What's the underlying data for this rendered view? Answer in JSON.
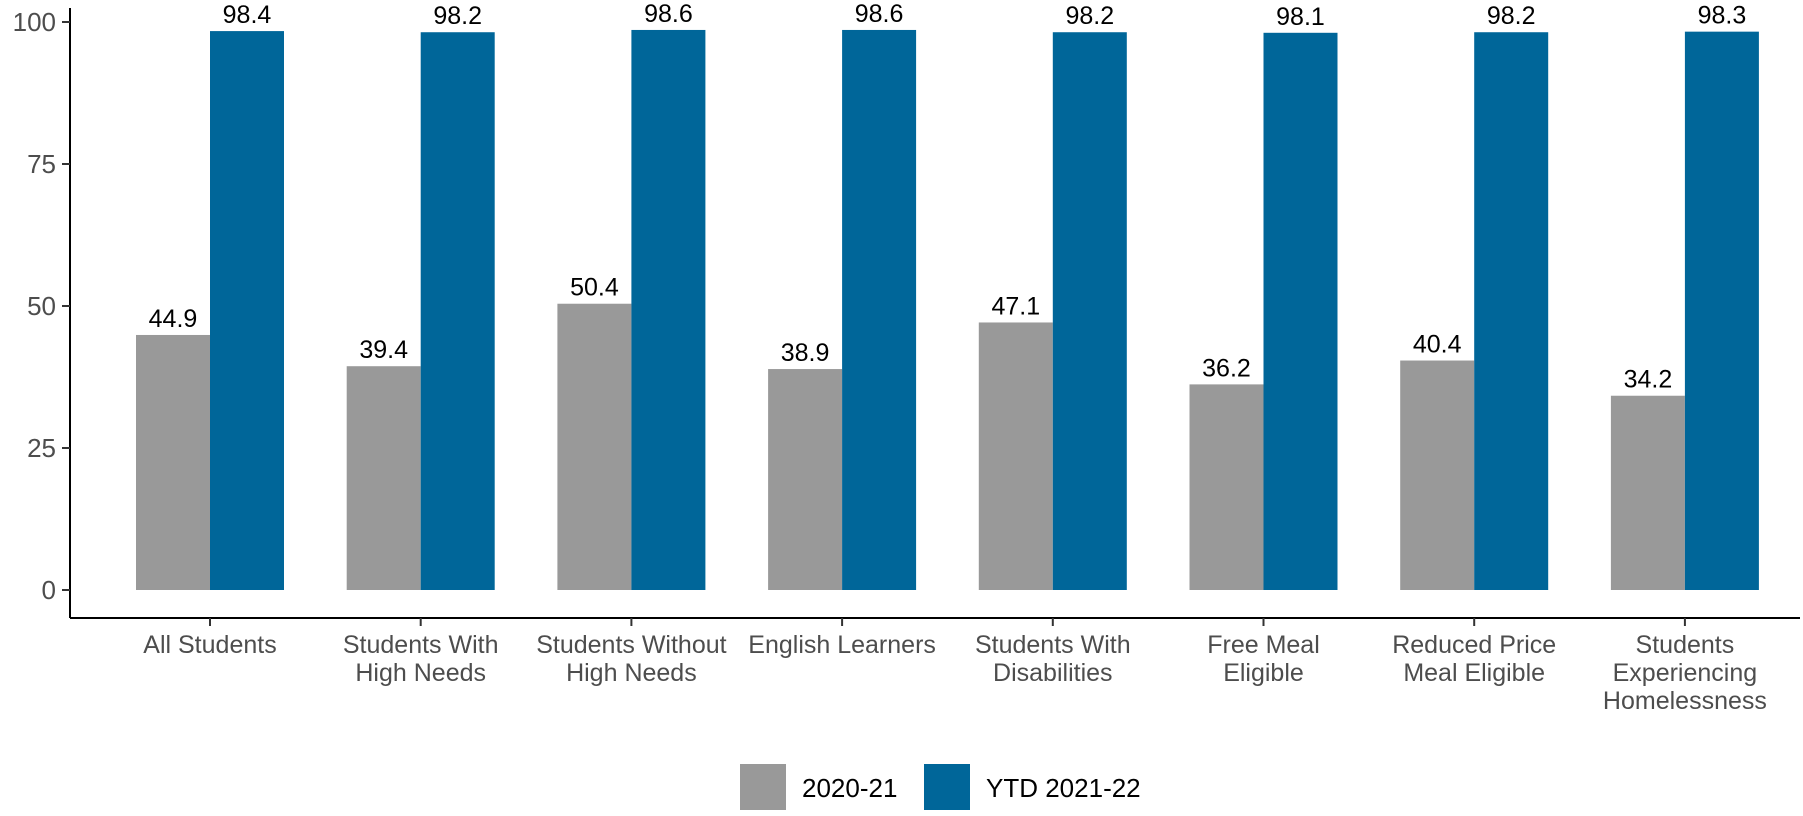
{
  "chart_data": {
    "type": "bar",
    "title": "",
    "xlabel": "",
    "ylabel": "",
    "ylim": [
      0,
      100
    ],
    "yticks": [
      0,
      25,
      50,
      75,
      100
    ],
    "grid": false,
    "legend_position": "bottom",
    "categories": [
      [
        "All Students"
      ],
      [
        "Students With",
        "High Needs"
      ],
      [
        "Students Without",
        "High Needs"
      ],
      [
        "English Learners"
      ],
      [
        "Students With",
        "Disabilities"
      ],
      [
        "Free Meal",
        "Eligible"
      ],
      [
        "Reduced Price",
        "Meal Eligible"
      ],
      [
        "Students",
        "Experiencing",
        "Homelessness"
      ]
    ],
    "series": [
      {
        "name": "2020-21",
        "color": "#999999",
        "values": [
          44.9,
          39.4,
          50.4,
          38.9,
          47.1,
          36.2,
          40.4,
          34.2
        ],
        "labels": [
          "44.9",
          "39.4",
          "50.4",
          "38.9",
          "47.1",
          "36.2",
          "40.4",
          "34.2"
        ]
      },
      {
        "name": "YTD 2021-22",
        "color": "#006699",
        "values": [
          98.4,
          98.2,
          98.6,
          98.6,
          98.2,
          98.1,
          98.2,
          98.3
        ],
        "labels": [
          "98.4",
          "98.2",
          "98.6",
          "98.6",
          "98.2",
          "98.1",
          "98.2",
          "98.3"
        ]
      }
    ]
  }
}
